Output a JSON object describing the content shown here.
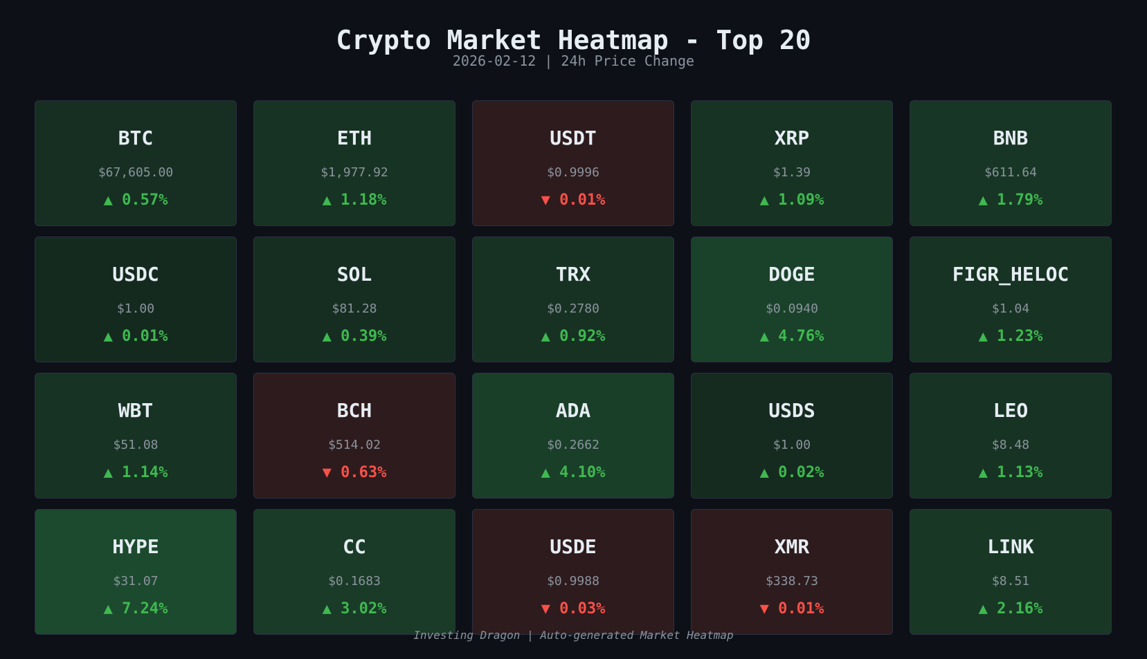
{
  "chart_data": {
    "type": "heatmap",
    "title": "Crypto Market Heatmap - Top 20",
    "subtitle": "2026-02-12 | 24h Price Change",
    "columns": 5,
    "rows": 4,
    "colors": {
      "background": "#0d1017",
      "up_text": "#3fb950",
      "down_text": "#f85149",
      "down_tile": "#2e1b1d",
      "up_tile_scale": [
        "#152a1f",
        "#1c4a2e"
      ]
    },
    "tiles": [
      {
        "symbol": "BTC",
        "price": "$67,605.00",
        "change": "0.57%",
        "change_value": 0.57
      },
      {
        "symbol": "ETH",
        "price": "$1,977.92",
        "change": "1.18%",
        "change_value": 1.18
      },
      {
        "symbol": "USDT",
        "price": "$0.9996",
        "change": "0.01%",
        "change_value": -0.01
      },
      {
        "symbol": "XRP",
        "price": "$1.39",
        "change": "1.09%",
        "change_value": 1.09
      },
      {
        "symbol": "BNB",
        "price": "$611.64",
        "change": "1.79%",
        "change_value": 1.79
      },
      {
        "symbol": "USDC",
        "price": "$1.00",
        "change": "0.01%",
        "change_value": 0.01
      },
      {
        "symbol": "SOL",
        "price": "$81.28",
        "change": "0.39%",
        "change_value": 0.39
      },
      {
        "symbol": "TRX",
        "price": "$0.2780",
        "change": "0.92%",
        "change_value": 0.92
      },
      {
        "symbol": "DOGE",
        "price": "$0.0940",
        "change": "4.76%",
        "change_value": 4.76
      },
      {
        "symbol": "FIGR_HELOC",
        "price": "$1.04",
        "change": "1.23%",
        "change_value": 1.23
      },
      {
        "symbol": "WBT",
        "price": "$51.08",
        "change": "1.14%",
        "change_value": 1.14
      },
      {
        "symbol": "BCH",
        "price": "$514.02",
        "change": "0.63%",
        "change_value": -0.63
      },
      {
        "symbol": "ADA",
        "price": "$0.2662",
        "change": "4.10%",
        "change_value": 4.1
      },
      {
        "symbol": "USDS",
        "price": "$1.00",
        "change": "0.02%",
        "change_value": 0.02
      },
      {
        "symbol": "LEO",
        "price": "$8.48",
        "change": "1.13%",
        "change_value": 1.13
      },
      {
        "symbol": "HYPE",
        "price": "$31.07",
        "change": "7.24%",
        "change_value": 7.24
      },
      {
        "symbol": "CC",
        "price": "$0.1683",
        "change": "3.02%",
        "change_value": 3.02
      },
      {
        "symbol": "USDE",
        "price": "$0.9988",
        "change": "0.03%",
        "change_value": -0.03
      },
      {
        "symbol": "XMR",
        "price": "$338.73",
        "change": "0.01%",
        "change_value": -0.01
      },
      {
        "symbol": "LINK",
        "price": "$8.51",
        "change": "2.16%",
        "change_value": 2.16
      }
    ]
  },
  "footer": "Investing Dragon | Auto-generated Market Heatmap"
}
